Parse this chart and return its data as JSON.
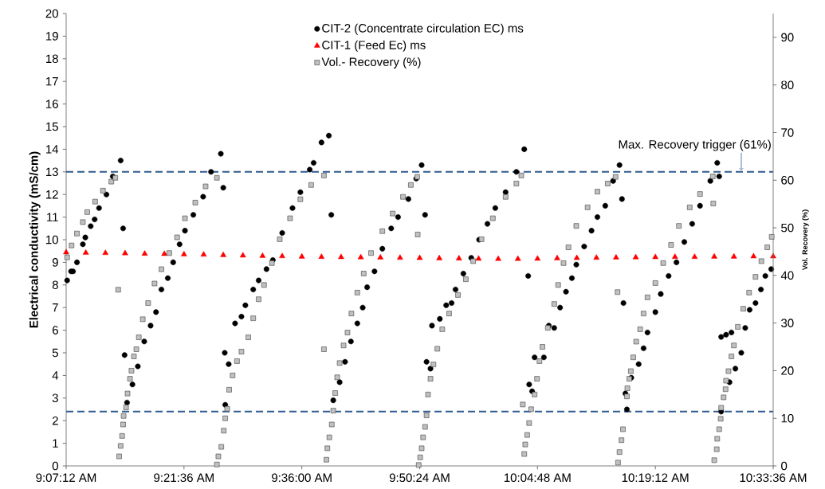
{
  "chart_data": {
    "type": "scatter",
    "ylabel": "Electrical conductivity (mS/cm)",
    "y2label": "Vol. Recovery (%)",
    "legend": "top",
    "grid": false,
    "xlim": [
      9.12,
      10.56
    ],
    "xticks": [
      {
        "value": 9.12,
        "label": "9:07:12 AM"
      },
      {
        "value": 9.36,
        "label": "9:21:36 AM"
      },
      {
        "value": 9.6,
        "label": "9:36:00 AM"
      },
      {
        "value": 9.84,
        "label": "9:50:24 AM"
      },
      {
        "value": 10.08,
        "label": "10:04:48 AM"
      },
      {
        "value": 10.32,
        "label": "10:19:12 AM"
      },
      {
        "value": 10.56,
        "label": "10:33:36 AM"
      }
    ],
    "ylim": [
      0,
      20
    ],
    "yticks": [
      0,
      1,
      2,
      3,
      4,
      5,
      6,
      7,
      8,
      9,
      10,
      11,
      12,
      13,
      14,
      15,
      16,
      17,
      18,
      19,
      20
    ],
    "y2lim": [
      0,
      95
    ],
    "y2ticks": [
      0,
      10,
      20,
      30,
      40,
      50,
      60,
      70,
      80,
      90
    ],
    "ref_lines": [
      {
        "axis": "y",
        "value": 13,
        "label": "Max. Recovery trigger (61%)",
        "color": "#2f5b8f",
        "line_style": "dashed"
      },
      {
        "axis": "y",
        "value": 2.4,
        "color": "#2f5b8f",
        "line_style": "dashed"
      }
    ],
    "series": [
      {
        "name": "CIT-2 (Concentrate circulation EC) ms",
        "color": "#000000",
        "marker": "circle",
        "axis": "y",
        "x": [
          9.122,
          9.13,
          9.134,
          9.142,
          9.154,
          9.159,
          9.17,
          9.178,
          9.187,
          9.202,
          9.215,
          9.231,
          9.236,
          9.239,
          9.244,
          9.255,
          9.266,
          9.279,
          9.292,
          9.303,
          9.314,
          9.327,
          9.338,
          9.351,
          9.362,
          9.379,
          9.399,
          9.415,
          9.435,
          9.44,
          9.443,
          9.444,
          9.451,
          9.464,
          9.477,
          9.485,
          9.501,
          9.512,
          9.528,
          9.541,
          9.56,
          9.581,
          9.597,
          9.616,
          9.624,
          9.64,
          9.655,
          9.66,
          9.664,
          9.677,
          9.688,
          9.7,
          9.713,
          9.724,
          9.733,
          9.748,
          9.764,
          9.782,
          9.796,
          9.817,
          9.833,
          9.844,
          9.851,
          9.854,
          9.862,
          9.865,
          9.881,
          9.894,
          9.905,
          9.913,
          9.929,
          9.945,
          9.961,
          9.978,
          9.994,
          10.015,
          10.037,
          10.053,
          10.061,
          10.063,
          10.069,
          10.074,
          10.093,
          10.103,
          10.114,
          10.126,
          10.138,
          10.15,
          10.159,
          10.175,
          10.19,
          10.202,
          10.218,
          10.234,
          10.247,
          10.252,
          10.255,
          10.259,
          10.262,
          10.271,
          10.286,
          10.296,
          10.304,
          10.32,
          10.331,
          10.347,
          10.363,
          10.379,
          10.395,
          10.411,
          10.432,
          10.446,
          10.45,
          10.454,
          10.454,
          10.464,
          10.471,
          10.475,
          10.483,
          10.495,
          10.503,
          10.512,
          10.524,
          10.535,
          10.544,
          10.556
        ],
        "values": [
          8.2,
          8.6,
          8.6,
          9.0,
          9.8,
          10.1,
          10.6,
          10.9,
          11.4,
          12.0,
          12.8,
          13.5,
          10.5,
          4.9,
          2.8,
          3.6,
          4.4,
          5.5,
          6.2,
          6.8,
          7.8,
          8.3,
          9.0,
          9.8,
          10.4,
          11.1,
          11.9,
          13.0,
          13.8,
          12.3,
          5.0,
          2.7,
          4.5,
          6.3,
          6.6,
          7.1,
          7.8,
          8.2,
          8.7,
          9.1,
          10.3,
          11.4,
          12.1,
          13.1,
          13.4,
          14.3,
          14.6,
          11.1,
          2.9,
          3.7,
          4.6,
          5.5,
          6.3,
          7.0,
          7.9,
          8.6,
          9.6,
          10.5,
          11.0,
          11.8,
          12.7,
          13.3,
          11.1,
          4.6,
          4.3,
          6.2,
          6.5,
          7.1,
          7.2,
          7.8,
          8.5,
          9.2,
          10.0,
          10.7,
          11.4,
          12.1,
          13.0,
          14.0,
          8.4,
          3.6,
          3.3,
          4.8,
          4.8,
          6.2,
          6.1,
          7.0,
          7.7,
          8.3,
          8.9,
          9.7,
          10.4,
          11.0,
          11.5,
          12.6,
          13.3,
          11.8,
          7.2,
          3.2,
          2.5,
          3.9,
          4.5,
          5.2,
          5.9,
          6.8,
          7.6,
          8.4,
          9.0,
          9.9,
          10.7,
          11.5,
          12.6,
          13.4,
          12.8,
          2.4,
          5.7,
          5.8,
          3.7,
          5.9,
          4.3,
          5.0,
          6.1,
          6.9,
          7.2,
          7.8,
          8.4,
          8.7
        ]
      },
      {
        "name": "CIT-1 (Feed Ec) ms",
        "color": "#ff0000",
        "marker": "triangle",
        "axis": "y",
        "x": [
          9.12,
          9.16,
          9.2,
          9.24,
          9.28,
          9.32,
          9.36,
          9.4,
          9.44,
          9.48,
          9.52,
          9.56,
          9.6,
          9.64,
          9.68,
          9.72,
          9.76,
          9.8,
          9.84,
          9.88,
          9.92,
          9.96,
          10.0,
          10.04,
          10.08,
          10.12,
          10.16,
          10.2,
          10.24,
          10.28,
          10.32,
          10.36,
          10.4,
          10.44,
          10.48,
          10.52,
          10.56
        ],
        "values": [
          9.44,
          9.42,
          9.41,
          9.4,
          9.38,
          9.37,
          9.35,
          9.34,
          9.32,
          9.3,
          9.28,
          9.27,
          9.25,
          9.24,
          9.23,
          9.22,
          9.21,
          9.2,
          9.19,
          9.18,
          9.17,
          9.16,
          9.15,
          9.15,
          9.16,
          9.18,
          9.19,
          9.2,
          9.21,
          9.22,
          9.23,
          9.24,
          9.24,
          9.25,
          9.25,
          9.26,
          9.26
        ]
      },
      {
        "name": "Vol.- Recovery (%)",
        "color": "#c0c0c0",
        "marker": "square",
        "axis": "y2",
        "x": [
          9.122,
          9.131,
          9.142,
          9.154,
          9.163,
          9.179,
          9.195,
          9.212,
          9.22,
          9.226,
          9.228,
          9.231,
          9.234,
          9.236,
          9.237,
          9.242,
          9.245,
          9.25,
          9.253,
          9.258,
          9.263,
          9.268,
          9.276,
          9.287,
          9.3,
          9.314,
          9.33,
          9.346,
          9.362,
          9.383,
          9.404,
          9.427,
          9.427,
          9.43,
          9.436,
          9.441,
          9.444,
          9.448,
          9.452,
          9.459,
          9.468,
          9.477,
          9.491,
          9.501,
          9.512,
          9.523,
          9.539,
          9.555,
          9.576,
          9.597,
          9.619,
          9.645,
          9.645,
          9.65,
          9.652,
          9.656,
          9.661,
          9.664,
          9.668,
          9.672,
          9.677,
          9.685,
          9.693,
          9.701,
          9.713,
          9.726,
          9.741,
          9.764,
          9.785,
          9.806,
          9.822,
          9.835,
          9.836,
          9.838,
          9.841,
          9.844,
          9.847,
          9.851,
          9.854,
          9.857,
          9.862,
          9.868,
          9.876,
          9.886,
          9.9,
          9.918,
          9.934,
          9.949,
          9.966,
          9.989,
          10.015,
          10.037,
          10.047,
          10.05,
          10.053,
          10.055,
          10.059,
          10.063,
          10.067,
          10.074,
          10.079,
          10.084,
          10.09,
          10.101,
          10.114,
          10.122,
          10.133,
          10.143,
          10.159,
          10.182,
          10.202,
          10.223,
          10.239,
          10.243,
          10.244,
          10.247,
          10.251,
          10.254,
          10.262,
          10.263,
          10.267,
          10.27,
          10.275,
          10.281,
          10.289,
          10.296,
          10.304,
          10.32,
          10.336,
          10.352,
          10.368,
          10.39,
          10.411,
          10.437,
          10.438,
          10.44,
          10.445,
          10.446,
          10.45,
          10.453,
          10.454,
          10.459,
          10.463,
          10.464,
          10.469,
          10.475,
          10.48,
          10.488,
          10.499,
          10.511,
          10.524,
          10.536,
          10.548,
          10.557
        ],
        "values": [
          43.8,
          46.3,
          48.8,
          51.2,
          53.3,
          55.5,
          57.8,
          59.7,
          60.5,
          37,
          2,
          4.2,
          6.3,
          8.7,
          10.5,
          12.3,
          15.2,
          18.3,
          20,
          23,
          24.5,
          27,
          30.8,
          34.2,
          38.3,
          41.3,
          44.7,
          48,
          52,
          55.3,
          58.7,
          60.5,
          0.3,
          2,
          4,
          7.4,
          10,
          12,
          16,
          19,
          22,
          24,
          27,
          31,
          35,
          38,
          42.6,
          47.6,
          52,
          56,
          59,
          61,
          24.5,
          1.3,
          3.7,
          6,
          8.7,
          11.6,
          15.3,
          18.6,
          21.6,
          25.3,
          28,
          32,
          36.4,
          40.4,
          44.7,
          49.3,
          53,
          56.5,
          59,
          60.7,
          48.6,
          0.2,
          1.8,
          3.7,
          6,
          8.2,
          10.6,
          15,
          18.3,
          21.3,
          24.6,
          28.7,
          32,
          35.9,
          39.2,
          43,
          47.6,
          52,
          56.5,
          59.3,
          61,
          12.9,
          2.5,
          4.5,
          6.5,
          9,
          11.9,
          15,
          18.3,
          22,
          25,
          29,
          34,
          38,
          42.6,
          45.9,
          50.4,
          54.3,
          57.6,
          59.3,
          60.7,
          36.5,
          0.7,
          2.9,
          5.4,
          7.7,
          14.6,
          16.3,
          18.3,
          19.9,
          22.8,
          26.1,
          28.7,
          32,
          35.4,
          38.4,
          42.6,
          46.4,
          50.4,
          54.3,
          57.1,
          60.8,
          55.1,
          1.2,
          3.5,
          5.7,
          7.7,
          9.9,
          12.2,
          14.4,
          16.1,
          17.9,
          19.9,
          23,
          25.3,
          29.2,
          33,
          36.4,
          39.7,
          43,
          45.9,
          48.1
        ]
      }
    ]
  }
}
